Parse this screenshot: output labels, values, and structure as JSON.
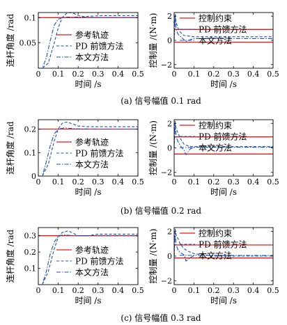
{
  "panel_captions": [
    "(a) 信号幅值 0.1 rad",
    "(b) 信号幅值 0.2 rad",
    "(c) 信号幅值 0.3 rad"
  ],
  "colors": {
    "reference": "#e0191f",
    "pd": "#1f4fb3",
    "proposed": "#1f4fb3",
    "constraint": "#e0191f",
    "axis": "#000000"
  },
  "chart_data": [
    {
      "type": "line",
      "panel": "a-left",
      "xlabel": "时间 /s",
      "ylabel": "连杆角度 /rad",
      "xlim": [
        0,
        0.5
      ],
      "ylim": [
        0,
        0.11
      ],
      "xticks": [
        0,
        0.1,
        0.2,
        0.3,
        0.4,
        0.5
      ],
      "yticks": [
        0.05,
        0.1
      ],
      "xtick_labels": [
        "0",
        "0.1",
        "0.2",
        "0.3",
        "0.4",
        "0.5"
      ],
      "ytick_labels": [
        "0.05",
        "0.1"
      ],
      "legend": "bottom-right",
      "series": [
        {
          "name": "参考轨迹",
          "style": "solid",
          "color": "#e0191f",
          "x": [
            0,
            0.5
          ],
          "y": [
            0.1,
            0.1
          ]
        },
        {
          "name": "PD 前馈方法",
          "style": "dashed",
          "color": "#1f4fb3",
          "x": [
            0,
            0.02,
            0.05,
            0.08,
            0.1,
            0.12,
            0.14,
            0.16,
            0.18,
            0.2,
            0.23,
            0.27,
            0.32,
            0.4,
            0.5
          ],
          "y": [
            0,
            0,
            0.01,
            0.05,
            0.08,
            0.1,
            0.108,
            0.11,
            0.108,
            0.104,
            0.102,
            0.103,
            0.104,
            0.104,
            0.104
          ]
        },
        {
          "name": "本文方法",
          "style": "dashdot",
          "color": "#1f4fb3",
          "x": [
            0,
            0.02,
            0.04,
            0.06,
            0.08,
            0.1,
            0.12,
            0.15,
            0.2,
            0.3,
            0.5
          ],
          "y": [
            0,
            0,
            0.02,
            0.055,
            0.085,
            0.097,
            0.1,
            0.101,
            0.101,
            0.1,
            0.1
          ]
        }
      ]
    },
    {
      "type": "line",
      "panel": "a-right",
      "xlabel": "时间 /s",
      "ylabel": "控制量 /(N·m)",
      "xlim": [
        0,
        0.5
      ],
      "ylim": [
        -2.3,
        2.3
      ],
      "xticks": [
        0,
        0.1,
        0.2,
        0.3,
        0.4,
        0.5
      ],
      "yticks": [
        -2,
        0,
        2
      ],
      "xtick_labels": [
        "0",
        "0.1",
        "0.2",
        "0.3",
        "0.4",
        "0.5"
      ],
      "ytick_labels": [
        "−2",
        "0",
        "2"
      ],
      "legend": "top-right",
      "series": [
        {
          "name": "控制约束",
          "style": "solid",
          "color": "#e0191f",
          "x": [
            0,
            0.5
          ],
          "y": [
            0.9,
            0.9
          ]
        },
        {
          "name": "",
          "style": "solid",
          "color": "#e0191f",
          "x": [
            0,
            0.5
          ],
          "y": [
            -0.15,
            -0.15
          ]
        },
        {
          "name": "PD 前馈方法",
          "style": "dashed",
          "color": "#1f4fb3",
          "x": [
            0,
            0.005,
            0.01,
            0.02,
            0.03,
            0.05,
            0.1,
            0.2,
            0.5
          ],
          "y": [
            0,
            2.2,
            1.5,
            1.0,
            0.7,
            0.4,
            0.3,
            0.3,
            0.3
          ]
        },
        {
          "name": "本文方法",
          "style": "dashdot",
          "color": "#1f4fb3",
          "x": [
            0,
            0.005,
            0.01,
            0.02,
            0.04,
            0.06,
            0.08,
            0.1,
            0.2,
            0.5
          ],
          "y": [
            0,
            2.0,
            0.9,
            0.5,
            0.2,
            -0.1,
            0.05,
            0.15,
            0.15,
            0.15
          ]
        }
      ]
    },
    {
      "type": "line",
      "panel": "b-left",
      "xlabel": "时间 /s",
      "ylabel": "连杆角度 /rad",
      "xlim": [
        0,
        0.5
      ],
      "ylim": [
        0,
        0.24
      ],
      "xticks": [
        0,
        0.1,
        0.2,
        0.3,
        0.4,
        0.5
      ],
      "yticks": [
        0,
        0.1,
        0.2
      ],
      "xtick_labels": [
        "0",
        "0.1",
        "0.2",
        "0.3",
        "0.4",
        "0.5"
      ],
      "ytick_labels": [
        "0",
        "0.1",
        "0.2"
      ],
      "legend": "bottom-right",
      "series": [
        {
          "name": "参考轨迹",
          "style": "solid",
          "color": "#e0191f",
          "x": [
            0,
            0.5
          ],
          "y": [
            0.2,
            0.2
          ]
        },
        {
          "name": "PD 前馈方法",
          "style": "dashed",
          "color": "#1f4fb3",
          "x": [
            0,
            0.02,
            0.05,
            0.08,
            0.1,
            0.12,
            0.14,
            0.17,
            0.2,
            0.25,
            0.3,
            0.4,
            0.5
          ],
          "y": [
            0,
            0,
            0.05,
            0.15,
            0.2,
            0.225,
            0.23,
            0.223,
            0.213,
            0.21,
            0.21,
            0.21,
            0.21
          ]
        },
        {
          "name": "本文方法",
          "style": "dashdot",
          "color": "#1f4fb3",
          "x": [
            0,
            0.02,
            0.04,
            0.06,
            0.08,
            0.1,
            0.13,
            0.16,
            0.2,
            0.3,
            0.5
          ],
          "y": [
            0,
            0,
            0.06,
            0.13,
            0.18,
            0.2,
            0.205,
            0.203,
            0.201,
            0.2,
            0.2
          ]
        }
      ]
    },
    {
      "type": "line",
      "panel": "b-right",
      "xlabel": "时间 /s",
      "ylabel": "控制量 /(N·m)",
      "xlim": [
        0,
        0.5
      ],
      "ylim": [
        -2.3,
        2.3
      ],
      "xticks": [
        0,
        0.1,
        0.2,
        0.3,
        0.4,
        0.5
      ],
      "yticks": [
        -2,
        0,
        2
      ],
      "xtick_labels": [
        "0",
        "0.1",
        "0.2",
        "0.3",
        "0.4",
        "0.5"
      ],
      "ytick_labels": [
        "−2",
        "0",
        "2"
      ],
      "legend": "top-right",
      "series": [
        {
          "name": "控制约束",
          "style": "solid",
          "color": "#e0191f",
          "x": [
            0,
            0.5
          ],
          "y": [
            0.9,
            0.9
          ]
        },
        {
          "name": "",
          "style": "solid",
          "color": "#e0191f",
          "x": [
            0,
            0.5
          ],
          "y": [
            -0.5,
            -0.5
          ]
        },
        {
          "name": "PD 前馈方法",
          "style": "dashed",
          "color": "#1f4fb3",
          "x": [
            0,
            0.005,
            0.01,
            0.02,
            0.03,
            0.05,
            0.08,
            0.1,
            0.2,
            0.5
          ],
          "y": [
            0,
            2.2,
            1.6,
            1.2,
            0.8,
            0.3,
            0.1,
            0.1,
            0.1,
            0.1
          ]
        },
        {
          "name": "本文方法",
          "style": "dashdot",
          "color": "#1f4fb3",
          "x": [
            0,
            0.005,
            0.01,
            0.02,
            0.03,
            0.05,
            0.06,
            0.08,
            0.1,
            0.2,
            0.5
          ],
          "y": [
            0,
            2.0,
            0.9,
            0.5,
            0.2,
            -0.2,
            -0.55,
            -0.1,
            0.05,
            0.05,
            0.05
          ]
        }
      ]
    },
    {
      "type": "line",
      "panel": "c-left",
      "xlabel": "时间 /s",
      "ylabel": "连杆角度 /rad",
      "xlim": [
        0,
        0.5
      ],
      "ylim": [
        0,
        0.35
      ],
      "xticks": [
        0,
        0.1,
        0.2,
        0.3,
        0.4,
        0.5
      ],
      "yticks": [
        0.1,
        0.2,
        0.3
      ],
      "xtick_labels": [
        "0",
        "0.1",
        "0.2",
        "0.3",
        "0.4",
        "0.5"
      ],
      "ytick_labels": [
        "0.1",
        "0.2",
        "0.3"
      ],
      "legend": "bottom-right",
      "series": [
        {
          "name": "参考轨迹",
          "style": "solid",
          "color": "#e0191f",
          "x": [
            0,
            0.5
          ],
          "y": [
            0.3,
            0.3
          ]
        },
        {
          "name": "PD 前馈方法",
          "style": "dashed",
          "color": "#1f4fb3",
          "x": [
            0,
            0.02,
            0.05,
            0.08,
            0.1,
            0.12,
            0.15,
            0.2,
            0.25,
            0.3,
            0.35,
            0.4,
            0.5
          ],
          "y": [
            0,
            0,
            0.08,
            0.22,
            0.29,
            0.32,
            0.33,
            0.3,
            0.3,
            0.31,
            0.31,
            0.31,
            0.31
          ]
        },
        {
          "name": "本文方法",
          "style": "dashdot",
          "color": "#1f4fb3",
          "x": [
            0,
            0.02,
            0.04,
            0.06,
            0.08,
            0.1,
            0.13,
            0.16,
            0.2,
            0.3,
            0.5
          ],
          "y": [
            0,
            0,
            0.08,
            0.19,
            0.26,
            0.3,
            0.305,
            0.302,
            0.3,
            0.3,
            0.3
          ]
        }
      ]
    },
    {
      "type": "line",
      "panel": "c-right",
      "xlabel": "时间 /s",
      "ylabel": "控制量 /(N·m)",
      "xlim": [
        0,
        0.5
      ],
      "ylim": [
        -2.3,
        2.3
      ],
      "xticks": [
        0,
        0.1,
        0.2,
        0.3,
        0.4,
        0.5
      ],
      "yticks": [
        -2,
        0,
        2
      ],
      "xtick_labels": [
        "0",
        "0.1",
        "0.2",
        "0.3",
        "0.4",
        "0.5"
      ],
      "ytick_labels": [
        "−2",
        "0",
        "2"
      ],
      "legend": "top-right",
      "series": [
        {
          "name": "控制约束",
          "style": "solid",
          "color": "#e0191f",
          "x": [
            0,
            0.5
          ],
          "y": [
            0.9,
            0.9
          ]
        },
        {
          "name": "",
          "style": "solid",
          "color": "#e0191f",
          "x": [
            0,
            0.5
          ],
          "y": [
            -0.15,
            -0.15
          ]
        },
        {
          "name": "PD 前馈方法",
          "style": "dashed",
          "color": "#1f4fb3",
          "x": [
            0,
            0.005,
            0.01,
            0.02,
            0.03,
            0.05,
            0.07,
            0.1,
            0.2,
            0.5
          ],
          "y": [
            0,
            2.2,
            1.7,
            1.4,
            1.0,
            0.6,
            0.4,
            0.2,
            0.0,
            0.0
          ]
        },
        {
          "name": "本文方法",
          "style": "dashdot",
          "color": "#1f4fb3",
          "x": [
            0,
            0.005,
            0.01,
            0.02,
            0.03,
            0.05,
            0.06,
            0.08,
            0.1,
            0.2,
            0.5
          ],
          "y": [
            0,
            2.0,
            0.9,
            0.5,
            0.3,
            0.1,
            -0.4,
            -0.15,
            0.05,
            0.05,
            0.05
          ]
        }
      ]
    }
  ]
}
